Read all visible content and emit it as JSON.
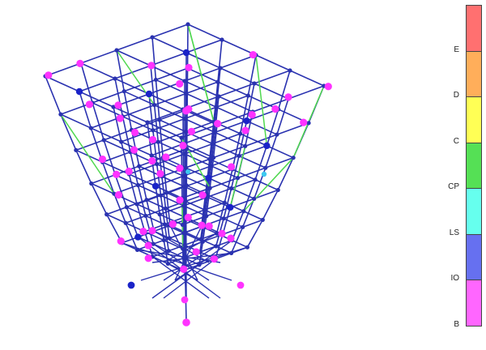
{
  "view": {
    "description_type": "hinge-state 3D frame view",
    "colors": {
      "frame": "#2a32b0",
      "brace": "#4fd84f",
      "node": "#2a32b0",
      "hinge": "#ff33ff",
      "hinge_io": "#1a23c8",
      "hinge_ls": "#3ec8f0"
    }
  },
  "legend": {
    "levels": [
      {
        "label": "E",
        "color": "#ff7070"
      },
      {
        "label": "D",
        "color": "#ffae5a"
      },
      {
        "label": "C",
        "color": "#ffff55"
      },
      {
        "label": "CP",
        "color": "#55e055"
      },
      {
        "label": "LS",
        "color": "#66ffee"
      },
      {
        "label": "IO",
        "color": "#6670f0"
      },
      {
        "label": "B",
        "color": "#ff66ff"
      }
    ]
  }
}
